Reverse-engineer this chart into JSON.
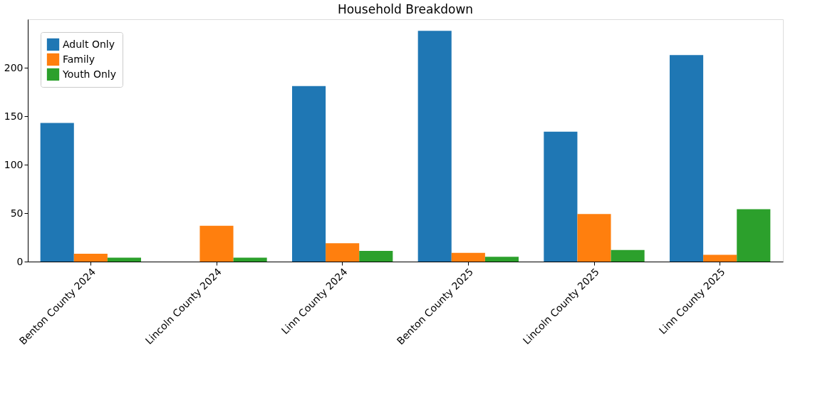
{
  "chart_data": {
    "type": "bar",
    "title": "Household Breakdown",
    "categories": [
      "Benton County 2024",
      "Lincoln County 2024",
      "Linn County 2024",
      "Benton County 2025",
      "Lincoln County 2025",
      "Linn County 2025"
    ],
    "series": [
      {
        "name": "Adult Only",
        "color": "#1f77b4",
        "values": [
          143,
          0,
          181,
          238,
          134,
          213
        ]
      },
      {
        "name": "Family",
        "color": "#ff7f0e",
        "values": [
          8,
          37,
          19,
          9,
          49,
          7
        ]
      },
      {
        "name": "Youth Only",
        "color": "#2ca02c",
        "values": [
          4,
          4,
          11,
          5,
          12,
          54
        ]
      }
    ],
    "ylim": [
      0,
      250
    ],
    "yticks": [
      0,
      50,
      100,
      150,
      200
    ],
    "grid": false,
    "legend": "top left"
  }
}
